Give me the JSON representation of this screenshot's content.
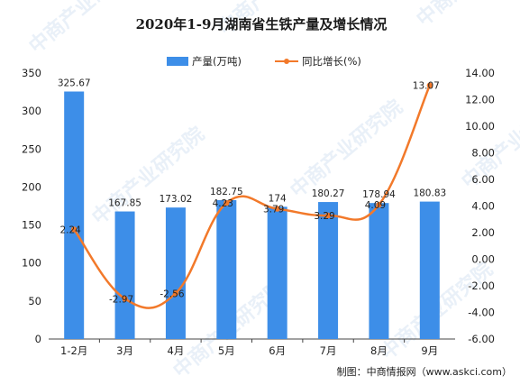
{
  "chart_data": {
    "type": "bar",
    "title": "2020年1-9月湖南省生铁产量及增长情况",
    "categories": [
      "1-2月",
      "3月",
      "4月",
      "5月",
      "6月",
      "7月",
      "8月",
      "9月"
    ],
    "series": [
      {
        "name": "产量(万吨)",
        "type": "bar",
        "axis": "left",
        "values": [
          325.67,
          167.85,
          173.02,
          182.75,
          174,
          180.27,
          178.94,
          180.83
        ],
        "labels": [
          "325.67",
          "167.85",
          "173.02",
          "182.75",
          "174",
          "180.27",
          "178.94",
          "180.83"
        ],
        "color": "#3d8ee8"
      },
      {
        "name": "同比增长(%)",
        "type": "line",
        "axis": "right",
        "values": [
          2.24,
          -2.97,
          -2.56,
          4.23,
          3.79,
          3.29,
          4.09,
          13.07
        ],
        "labels": [
          "2.24",
          "-2.97",
          "-2.56",
          "4.23",
          "3.79",
          "3.29",
          "4.09",
          "13.07"
        ],
        "color": "#f2792a"
      }
    ],
    "y_left": {
      "min": 0,
      "max": 350,
      "ticks": [
        "0",
        "50",
        "100",
        "150",
        "200",
        "250",
        "300",
        "350"
      ]
    },
    "y_right": {
      "min": -6,
      "max": 14,
      "ticks": [
        "-6.00",
        "-4.00",
        "-2.00",
        "0.00",
        "2.00",
        "4.00",
        "6.00",
        "8.00",
        "10.00",
        "12.00",
        "14.00"
      ]
    },
    "legend_position": "top-center",
    "grid": false
  },
  "source": "制图：中商情报网（www.askci.com）",
  "watermark": "中商产业研究院"
}
